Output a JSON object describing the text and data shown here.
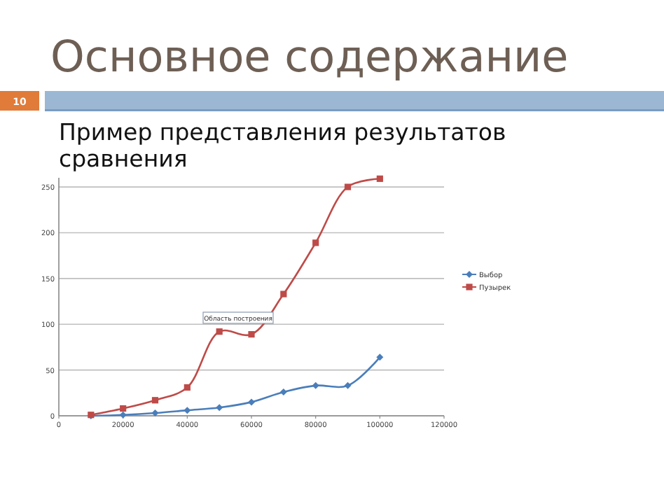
{
  "chart_data": {
    "type": "line",
    "title": "Основное содержание",
    "subtitle": "Пример представления результатов сравнения",
    "annotations": [
      "10",
      "Область построения"
    ],
    "x": [
      10000,
      20000,
      30000,
      40000,
      50000,
      60000,
      70000,
      80000,
      90000,
      100000
    ],
    "series": [
      {
        "name": "Выбор",
        "color": "#4a7ebb",
        "marker": "diamond",
        "values": [
          0,
          1,
          3,
          6,
          9,
          15,
          26,
          33,
          33,
          64
        ]
      },
      {
        "name": "Пузырек",
        "color": "#be4b48",
        "marker": "square",
        "values": [
          1,
          8,
          17,
          31,
          92,
          89,
          133,
          189,
          250,
          259
        ]
      }
    ],
    "xlim": [
      0,
      120000
    ],
    "xticks": [
      0,
      20000,
      40000,
      60000,
      80000,
      100000,
      120000
    ],
    "ylim": [
      0,
      260
    ],
    "yticks": [
      0,
      50,
      100,
      150,
      200,
      250
    ],
    "grid": "y",
    "legend": "right"
  }
}
